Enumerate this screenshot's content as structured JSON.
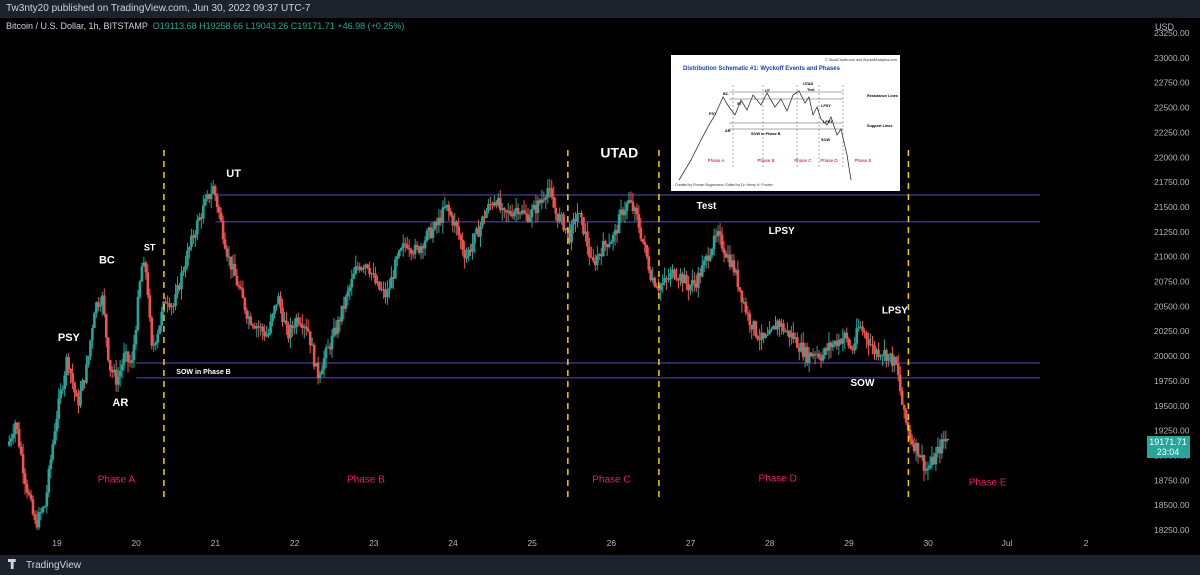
{
  "header": {
    "title": "Tw3nty20 published on TradingView.com, Jun 30, 2022 09:37 UTC-7"
  },
  "symbol": {
    "name": "Bitcoin / U.S. Dollar, 1h, BITSTAMP",
    "open": "O19113.68",
    "high": "H19258.66",
    "low": "L19043.26",
    "close": "C19171.71",
    "change": "+46.98 (+0.25%)"
  },
  "footer": {
    "brand": "TradingView"
  },
  "colors": {
    "up": "#26a69a",
    "down": "#ef5350",
    "range": "#5b4bb7",
    "phase_line": "#f5d000",
    "phase_label": "#e91e63"
  },
  "chart_data": {
    "type": "candlestick",
    "title": "Bitcoin / U.S. Dollar, 1h, BITSTAMP",
    "ylabel": "USD",
    "ylim": [
      18150,
      23500
    ],
    "y_ticks": [
      18250,
      18500,
      18750,
      19000,
      19250,
      19500,
      19750,
      20000,
      20250,
      20500,
      20750,
      21000,
      21250,
      21500,
      21750,
      22000,
      22250,
      22500,
      22750,
      23000,
      23250
    ],
    "x_ticks": [
      "19",
      "20",
      "21",
      "22",
      "23",
      "24",
      "25",
      "26",
      "27",
      "28",
      "29",
      "30",
      "Jul",
      "2"
    ],
    "last_price": "19171.71",
    "countdown": "23:04",
    "price_path": [
      [
        0,
        19100
      ],
      [
        6,
        19350
      ],
      [
        14,
        18750
      ],
      [
        22,
        18300
      ],
      [
        30,
        18500
      ],
      [
        38,
        19300
      ],
      [
        48,
        20000
      ],
      [
        56,
        19500
      ],
      [
        64,
        19900
      ],
      [
        70,
        20500
      ],
      [
        76,
        20600
      ],
      [
        82,
        19900
      ],
      [
        88,
        19750
      ],
      [
        94,
        20000
      ],
      [
        100,
        19900
      ],
      [
        108,
        20900
      ],
      [
        112,
        20850
      ],
      [
        116,
        20050
      ],
      [
        122,
        20300
      ],
      [
        128,
        20600
      ],
      [
        134,
        20500
      ],
      [
        142,
        20900
      ],
      [
        152,
        21300
      ],
      [
        160,
        21550
      ],
      [
        166,
        21700
      ],
      [
        172,
        21350
      ],
      [
        178,
        21000
      ],
      [
        186,
        20700
      ],
      [
        194,
        20400
      ],
      [
        202,
        20300
      ],
      [
        210,
        20200
      ],
      [
        218,
        20600
      ],
      [
        226,
        20200
      ],
      [
        234,
        20400
      ],
      [
        242,
        20300
      ],
      [
        250,
        19800
      ],
      [
        258,
        20050
      ],
      [
        266,
        20300
      ],
      [
        274,
        20600
      ],
      [
        282,
        20900
      ],
      [
        290,
        20950
      ],
      [
        298,
        20700
      ],
      [
        306,
        20600
      ],
      [
        314,
        20950
      ],
      [
        322,
        21150
      ],
      [
        330,
        21050
      ],
      [
        338,
        21200
      ],
      [
        346,
        21300
      ],
      [
        354,
        21500
      ],
      [
        362,
        21300
      ],
      [
        370,
        21000
      ],
      [
        378,
        21200
      ],
      [
        386,
        21450
      ],
      [
        394,
        21600
      ],
      [
        400,
        21400
      ],
      [
        406,
        21450
      ],
      [
        412,
        21500
      ],
      [
        418,
        21400
      ],
      [
        424,
        21450
      ],
      [
        430,
        21550
      ],
      [
        436,
        21700
      ],
      [
        442,
        21450
      ],
      [
        448,
        21350
      ],
      [
        454,
        21200
      ],
      [
        460,
        21450
      ],
      [
        466,
        21250
      ],
      [
        472,
        20900
      ],
      [
        478,
        21050
      ],
      [
        484,
        21150
      ],
      [
        490,
        21200
      ],
      [
        496,
        21450
      ],
      [
        502,
        21550
      ],
      [
        508,
        21400
      ],
      [
        514,
        21100
      ],
      [
        520,
        20800
      ],
      [
        526,
        20700
      ],
      [
        532,
        20750
      ],
      [
        538,
        20850
      ],
      [
        544,
        20800
      ],
      [
        550,
        20700
      ],
      [
        556,
        20750
      ],
      [
        562,
        20900
      ],
      [
        568,
        21100
      ],
      [
        574,
        21200
      ],
      [
        580,
        21050
      ],
      [
        586,
        20900
      ],
      [
        592,
        20650
      ],
      [
        598,
        20400
      ],
      [
        604,
        20250
      ],
      [
        610,
        20150
      ],
      [
        616,
        20200
      ],
      [
        622,
        20350
      ],
      [
        628,
        20250
      ],
      [
        634,
        20200
      ],
      [
        640,
        20100
      ],
      [
        646,
        20000
      ],
      [
        652,
        20050
      ],
      [
        658,
        20000
      ],
      [
        664,
        20100
      ],
      [
        670,
        20150
      ],
      [
        676,
        20200
      ],
      [
        682,
        20050
      ],
      [
        688,
        20300
      ],
      [
        694,
        20200
      ],
      [
        700,
        20050
      ],
      [
        706,
        20050
      ],
      [
        712,
        20000
      ],
      [
        718,
        19900
      ],
      [
        724,
        19400
      ],
      [
        730,
        19150
      ],
      [
        736,
        19050
      ],
      [
        742,
        18850
      ],
      [
        748,
        18950
      ],
      [
        754,
        19100
      ],
      [
        760,
        19200
      ]
    ],
    "range_lines": [
      {
        "y": 21620,
        "from": "21",
        "to": "2"
      },
      {
        "y": 21350,
        "from": "21",
        "to": "2"
      },
      {
        "y": 19930,
        "from": "20",
        "to": "2"
      },
      {
        "y": 19780,
        "from": "20",
        "to": "2"
      }
    ],
    "phase_lines": [
      20.35,
      25.45,
      26.6,
      29.75
    ],
    "phases": [
      {
        "label": "Phase A",
        "x": 19.75,
        "y": 18730
      },
      {
        "label": "Phase B",
        "x": 22.9,
        "y": 18730
      },
      {
        "label": "Phase C",
        "x": 26.0,
        "y": 18730
      },
      {
        "label": "Phase D",
        "x": 28.1,
        "y": 18740
      },
      {
        "label": "Phase E",
        "x": 30.75,
        "y": 18700
      }
    ],
    "events": [
      {
        "label": "PSY",
        "x": 19.15,
        "y": 20150,
        "size": 11
      },
      {
        "label": "BC",
        "x": 19.63,
        "y": 20930,
        "size": 11
      },
      {
        "label": "ST",
        "x": 20.17,
        "y": 21060,
        "size": 9
      },
      {
        "label": "AR",
        "x": 19.8,
        "y": 19500,
        "size": 11
      },
      {
        "label": "UT",
        "x": 21.23,
        "y": 21800,
        "size": 11
      },
      {
        "label": "SOW in Phase B",
        "x": 20.85,
        "y": 19820,
        "size": 7
      },
      {
        "label": "UTAD",
        "x": 26.1,
        "y": 22000,
        "size": 14
      },
      {
        "label": "Test",
        "x": 27.2,
        "y": 21480,
        "size": 10
      },
      {
        "label": "LPSY",
        "x": 28.15,
        "y": 21230,
        "size": 10
      },
      {
        "label": "SOW",
        "x": 29.17,
        "y": 19700,
        "size": 10
      },
      {
        "label": "LPSY",
        "x": 29.58,
        "y": 20430,
        "size": 10
      }
    ]
  },
  "inset": {
    "title": "Distribution Schematic #1: Wyckoff Events and Phases",
    "source": "© StockCharts.com and WyckoffAnalytics.com",
    "credit": "Created by Roman Bogomazov. Edited by Dr. Henry H. Pruden",
    "labels": [
      "BC",
      "PSY",
      "ST",
      "AR",
      "UT",
      "UTAD",
      "Test",
      "LPSY",
      "LPSY",
      "SOW",
      "SOW in Phase B",
      "Resistance Lines",
      "Support Lines"
    ],
    "phases": [
      "Phase A",
      "Phase B",
      "Phase C",
      "Phase D",
      "Phase E"
    ]
  }
}
